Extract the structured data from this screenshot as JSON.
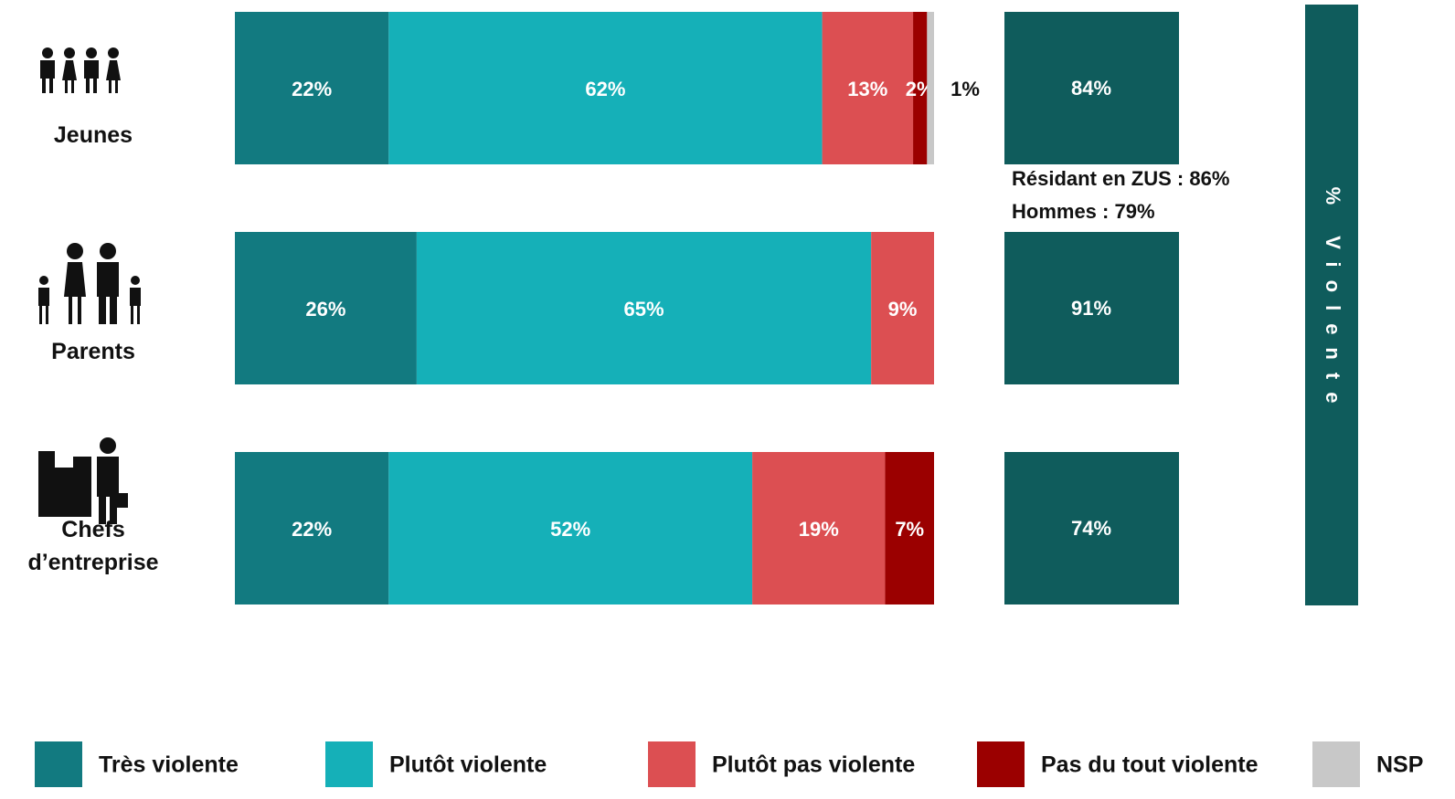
{
  "chart_data": {
    "type": "bar",
    "orientation": "horizontal",
    "stacked": true,
    "categories": [
      "Jeunes",
      "Parents",
      "Chefs d’entreprise"
    ],
    "series": [
      {
        "name": "Très violente",
        "color": "#127a80",
        "values": [
          22,
          26,
          22
        ],
        "value_labels": [
          "22%",
          "26%",
          "22%"
        ]
      },
      {
        "name": "Plutôt violente",
        "color": "#15b0b8",
        "values": [
          62,
          65,
          52
        ],
        "value_labels": [
          "62%",
          "65%",
          "52%"
        ]
      },
      {
        "name": "Plutôt pas violente",
        "color": "#dc4f52",
        "values": [
          13,
          9,
          19
        ],
        "value_labels": [
          "13%",
          "9%",
          "19%"
        ]
      },
      {
        "name": "Pas du tout violente",
        "color": "#9b0000",
        "values": [
          2,
          null,
          7
        ],
        "value_labels": [
          "2%",
          null,
          "7%"
        ]
      },
      {
        "name": "NSP",
        "color": "#c8c8c8",
        "values": [
          1,
          null,
          null
        ],
        "value_labels": [
          "1%",
          null,
          null
        ]
      }
    ],
    "totals": {
      "title": "% Violente",
      "color": "#0f5c5c",
      "values": [
        84,
        91,
        74
      ],
      "value_labels": [
        "84%",
        "91%",
        "74%"
      ]
    },
    "notes": [
      "Résidant en ZUS : 86%",
      "Hommes : 79%"
    ],
    "xlim": [
      0,
      100
    ]
  }
}
